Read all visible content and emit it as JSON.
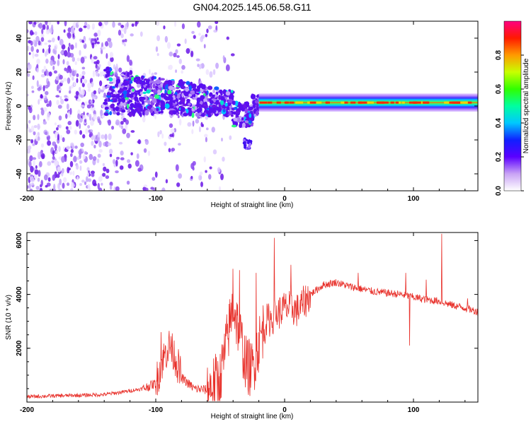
{
  "title": "GN04.2025.145.06.58.G11",
  "colors": {
    "snr_line": "#e8302a",
    "axis": "#000000",
    "background": "#ffffff"
  },
  "chart_data": [
    {
      "type": "heatmap",
      "xlabel": "Height of straight line (km)",
      "ylabel": "Frequency (Hz)",
      "xlim": [
        -200,
        150
      ],
      "ylim": [
        -50,
        50
      ],
      "x_ticks": [
        -200,
        -100,
        0,
        100
      ],
      "y_ticks": [
        40,
        20,
        0,
        -20,
        -40
      ],
      "colorbar": {
        "label": "Normalized spectral amplitude",
        "range": [
          0,
          1
        ],
        "ticks": [
          "0.0",
          "0.2",
          "0.4",
          "0.6",
          "0.8"
        ],
        "colormap": "white-purple-blue-cyan-green-yellow-red-magenta"
      },
      "features": {
        "dominant_ridge": {
          "x_range": [
            -20,
            145
          ],
          "frequency_hz": 2,
          "amplitude": 0.9
        },
        "scattered_region": {
          "x_range": [
            -200,
            -60
          ],
          "frequency_range_hz": [
            -50,
            50
          ]
        },
        "transition_band": {
          "x_range": [
            -140,
            -20
          ],
          "frequency_range_hz": [
            -25,
            25
          ]
        }
      }
    },
    {
      "type": "line",
      "xlabel": "Height of straight line (km)",
      "ylabel": "SNR (10 * v/v)",
      "xlim": [
        -200,
        150
      ],
      "ylim": [
        0,
        6300
      ],
      "x_ticks": [
        -200,
        -100,
        0,
        100
      ],
      "y_ticks": [
        2000,
        4000,
        6000
      ],
      "series": [
        {
          "name": "",
          "points": [
            [
              -200,
              200
            ],
            [
              -180,
              230
            ],
            [
              -160,
              250
            ],
            [
              -140,
              280
            ],
            [
              -125,
              380
            ],
            [
              -110,
              500
            ],
            [
              -100,
              700
            ],
            [
              -95,
              1500
            ],
            [
              -90,
              2100
            ],
            [
              -85,
              1700
            ],
            [
              -80,
              900
            ],
            [
              -70,
              500
            ],
            [
              -60,
              450
            ],
            [
              -50,
              900
            ],
            [
              -45,
              2200
            ],
            [
              -40,
              3600
            ],
            [
              -35,
              2600
            ],
            [
              -30,
              1400
            ],
            [
              -25,
              1200
            ],
            [
              -20,
              2200
            ],
            [
              -15,
              3000
            ],
            [
              -10,
              3100
            ],
            [
              -5,
              3300
            ],
            [
              0,
              3500
            ],
            [
              5,
              3500
            ],
            [
              10,
              3400
            ],
            [
              20,
              4000
            ],
            [
              30,
              4350
            ],
            [
              40,
              4450
            ],
            [
              50,
              4300
            ],
            [
              60,
              4200
            ],
            [
              70,
              4100
            ],
            [
              80,
              4050
            ],
            [
              90,
              4000
            ],
            [
              100,
              3900
            ],
            [
              110,
              3800
            ],
            [
              120,
              3750
            ],
            [
              130,
              3600
            ],
            [
              140,
              3500
            ],
            [
              150,
              3350
            ]
          ],
          "spikes": [
            [
              -96,
              2600
            ],
            [
              -88,
              2450
            ],
            [
              -40,
              4950
            ],
            [
              -35,
              4900
            ],
            [
              -22,
              4800
            ],
            [
              -8,
              6100
            ],
            [
              5,
              5100
            ],
            [
              57,
              4800
            ],
            [
              94,
              4800
            ],
            [
              97,
              2100
            ],
            [
              110,
              4550
            ],
            [
              122,
              6250
            ],
            [
              142,
              3850
            ]
          ]
        }
      ]
    }
  ]
}
